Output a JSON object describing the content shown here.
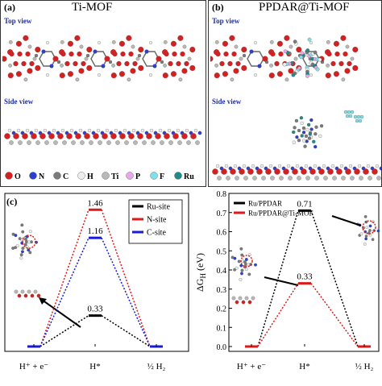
{
  "panel_a": {
    "label": "(a)",
    "title": "Ti-MOF",
    "top_view": "Top view",
    "side_view": "Side view"
  },
  "panel_b": {
    "label": "(b)",
    "title": "PPDAR@Ti-MOF",
    "top_view": "Top view",
    "side_view": "Side view"
  },
  "element_legend": [
    {
      "symbol": "O",
      "color": "#d62020"
    },
    {
      "symbol": "N",
      "color": "#2b3fd0"
    },
    {
      "symbol": "C",
      "color": "#7a7a7a"
    },
    {
      "symbol": "H",
      "color": "#eeeeee"
    },
    {
      "symbol": "Ti",
      "color": "#b8b8b8"
    },
    {
      "symbol": "P",
      "color": "#e9a6e9"
    },
    {
      "symbol": "F",
      "color": "#7fe0ea"
    },
    {
      "symbol": "Ru",
      "color": "#1e8a8a"
    }
  ],
  "chart_data": [
    {
      "type": "line",
      "panel_label": "(c)",
      "x_categories": [
        "H⁺ + e⁻",
        "H*",
        "½ H₂"
      ],
      "ylim": [
        0,
        1.6
      ],
      "series": [
        {
          "name": "Ru-site",
          "color": "#000000",
          "values": [
            0,
            0.33,
            0
          ]
        },
        {
          "name": "N-site",
          "color": "#e01818",
          "values": [
            0,
            1.46,
            0
          ]
        },
        {
          "name": "C-site",
          "color": "#1a1ad8",
          "values": [
            0,
            1.16,
            0
          ]
        }
      ],
      "data_labels": [
        "0.33",
        "1.46",
        "1.16"
      ],
      "legend_position": "top-right",
      "grid": false
    },
    {
      "type": "line",
      "panel_label": "(d)",
      "ylabel": "ΔG_H (eV)",
      "y_ticks": [
        "0.0",
        "0.1",
        "0.2",
        "0.3",
        "0.4",
        "0.5",
        "0.6",
        "0.7",
        "0.8"
      ],
      "x_categories": [
        "H⁺ + e⁻",
        "H*",
        "½ H₂"
      ],
      "ylim": [
        0,
        0.8
      ],
      "series": [
        {
          "name": "Ru/PPDAR",
          "color": "#000000",
          "values": [
            0,
            0.71,
            0
          ]
        },
        {
          "name": "Ru/PPDAR@Ti-MOF",
          "color": "#e01818",
          "values": [
            0,
            0.33,
            0
          ]
        }
      ],
      "data_labels": [
        "0.71",
        "0.33"
      ],
      "legend_position": "top-left",
      "grid": false
    }
  ]
}
